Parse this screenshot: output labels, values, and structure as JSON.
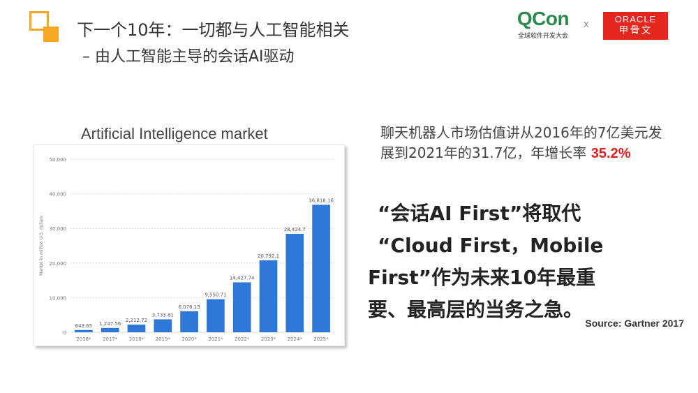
{
  "header": {
    "title_line1": "下一个10年：一切都与人工智能相关",
    "title_line2": "– 由人工智能主导的会话AI驱动"
  },
  "logos": {
    "qcon_main": "QCon",
    "qcon_sub": "全球软件开发大会",
    "separator": "x",
    "oracle_main": "ORACLE",
    "oracle_sub": "甲骨文",
    "accent_color": "#f5a623",
    "oracle_color": "#e5261f"
  },
  "chart_title": "Artificial Intelligence market",
  "chart_data": {
    "type": "bar",
    "title": "Artificial Intelligence market",
    "ylabel": "Market in million U.S. dollars",
    "xlabel": "",
    "categories": [
      "2016*",
      "2017*",
      "2018*",
      "2019*",
      "2020*",
      "2021*",
      "2022*",
      "2023*",
      "2024*",
      "2025*"
    ],
    "values": [
      643.65,
      1247.56,
      2212.72,
      3733.81,
      6076.13,
      9550.71,
      14427.74,
      20792.1,
      28424.7,
      36818.16
    ],
    "value_labels": [
      "643.65",
      "1,247.56",
      "2,212.72",
      "3,733.81",
      "6,076.13",
      "9,550.71",
      "14,427.74",
      "20,792.1",
      "28,424.7",
      "36,818.16"
    ],
    "yticks": [
      "0",
      "10,000",
      "20,000",
      "30,000",
      "40,000",
      "50,000"
    ],
    "ylim": [
      0,
      50000
    ],
    "grid": true,
    "bar_color": "#2e77d6"
  },
  "description": {
    "text": "聊天机器人市场估值讲从2016年的7亿美元发展到2021年的31.7亿，年增长率",
    "rate": "35.2%"
  },
  "quote": {
    "line1": "“会话AI First”将取代",
    "line2": "“Cloud First，Mobile",
    "line3": "First”作为未来10年最重",
    "line4": "要、最高层的当务之急。"
  },
  "source": "Source: Gartner 2017"
}
